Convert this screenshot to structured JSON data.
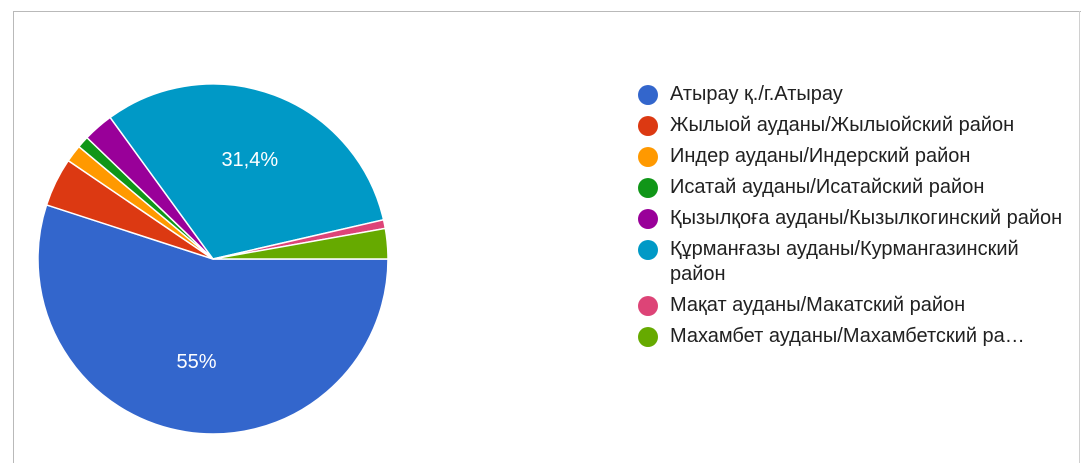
{
  "chart_data": {
    "type": "pie",
    "start_angle_deg": 0,
    "direction": "clockwise",
    "legend_position": "right",
    "slices": [
      {
        "label": "Атырау қ./г.Атырау",
        "value": 55.0,
        "color": "#3366cc",
        "data_label": "55%"
      },
      {
        "label": "Жылыой ауданы/Жылыойский район",
        "value": 4.5,
        "color": "#dc3912",
        "data_label": ""
      },
      {
        "label": "Индер ауданы/Индерский район",
        "value": 1.6,
        "color": "#ff9900",
        "data_label": ""
      },
      {
        "label": "Исатай ауданы/Исатайский район",
        "value": 1.1,
        "color": "#109618",
        "data_label": ""
      },
      {
        "label": "Қызылқоға ауданы/Кызылкогинский район",
        "value": 2.8,
        "color": "#990099",
        "data_label": ""
      },
      {
        "label": "Құрманғазы ауданы/Курмангазинский район",
        "value": 31.4,
        "color": "#0099c6",
        "data_label": "31,4%"
      },
      {
        "label": "Мақат ауданы/Макатский район",
        "value": 0.8,
        "color": "#dd4477",
        "data_label": ""
      },
      {
        "label": "Махамбет ауданы/Махамбетский ра…",
        "value": 2.8,
        "color": "#66aa00",
        "data_label": ""
      }
    ]
  }
}
